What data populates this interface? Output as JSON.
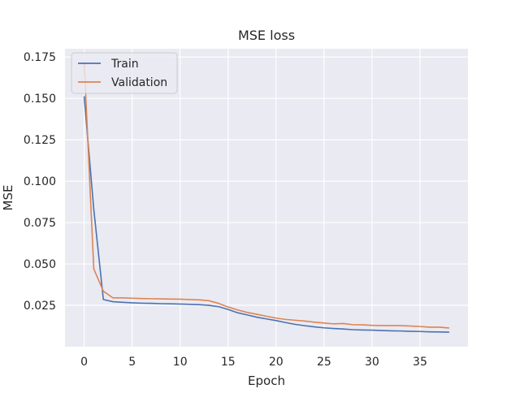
{
  "chart_data": {
    "type": "line",
    "title": "MSE loss",
    "xlabel": "Epoch",
    "ylabel": "MSE",
    "xlim": [
      -2,
      40
    ],
    "ylim": [
      0,
      0.18
    ],
    "xticks": [
      0,
      5,
      10,
      15,
      20,
      25,
      30,
      35
    ],
    "yticks": [
      0.025,
      0.05,
      0.075,
      0.1,
      0.125,
      0.15,
      0.175
    ],
    "ytick_labels": [
      "0.025",
      "0.050",
      "0.075",
      "0.100",
      "0.125",
      "0.150",
      "0.175"
    ],
    "grid": true,
    "legend_position": "top-left",
    "x": [
      0,
      1,
      2,
      3,
      4,
      5,
      6,
      7,
      8,
      9,
      10,
      11,
      12,
      13,
      14,
      15,
      16,
      17,
      18,
      19,
      20,
      21,
      22,
      23,
      24,
      25,
      26,
      27,
      28,
      29,
      30,
      31,
      32,
      33,
      34,
      35,
      36,
      37,
      38
    ],
    "series": [
      {
        "name": "Train",
        "color": "#4c72b0",
        "values": [
          0.151,
          0.083,
          0.0285,
          0.0272,
          0.0268,
          0.0265,
          0.0263,
          0.0262,
          0.026,
          0.0259,
          0.0258,
          0.0256,
          0.0254,
          0.025,
          0.0242,
          0.0225,
          0.0205,
          0.0192,
          0.0178,
          0.0168,
          0.0158,
          0.0146,
          0.0135,
          0.0127,
          0.012,
          0.0114,
          0.011,
          0.0107,
          0.0103,
          0.0101,
          0.01,
          0.0098,
          0.0096,
          0.0095,
          0.0093,
          0.0092,
          0.009,
          0.0089,
          0.0088
        ]
      },
      {
        "name": "Validation",
        "color": "#dd8452",
        "values": [
          0.172,
          0.047,
          0.0335,
          0.0295,
          0.0295,
          0.0293,
          0.0291,
          0.029,
          0.0289,
          0.0288,
          0.0287,
          0.0285,
          0.0283,
          0.0278,
          0.0262,
          0.024,
          0.0222,
          0.0207,
          0.0196,
          0.0184,
          0.0173,
          0.0165,
          0.016,
          0.0155,
          0.0148,
          0.0143,
          0.0138,
          0.014,
          0.0133,
          0.0132,
          0.0129,
          0.0128,
          0.0128,
          0.0127,
          0.0125,
          0.0122,
          0.0118,
          0.0118,
          0.0113
        ]
      }
    ]
  },
  "colors": {
    "plot_background": "#eaeaf2",
    "grid": "#ffffff"
  }
}
